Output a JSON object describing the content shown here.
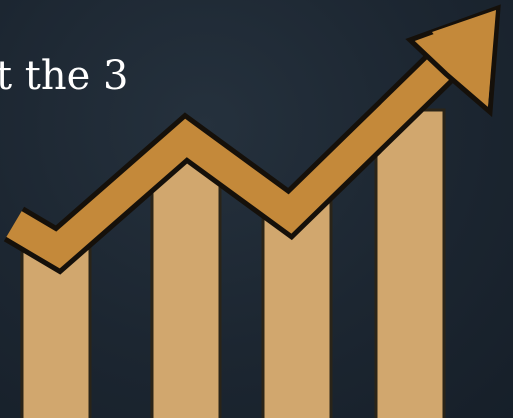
{
  "slide": {
    "caption_fragment": "t the 3"
  },
  "colors": {
    "background": "#1c2733",
    "bar_fill": "#d1a76e",
    "bar_stroke": "#2a2418",
    "arrow_fill": "#c4893a",
    "arrow_outline": "#15100a",
    "caption_text": "#ffffff"
  },
  "graphic": {
    "icon": "rising-trend-arrow-over-bars-icon",
    "bar_count": 4
  }
}
